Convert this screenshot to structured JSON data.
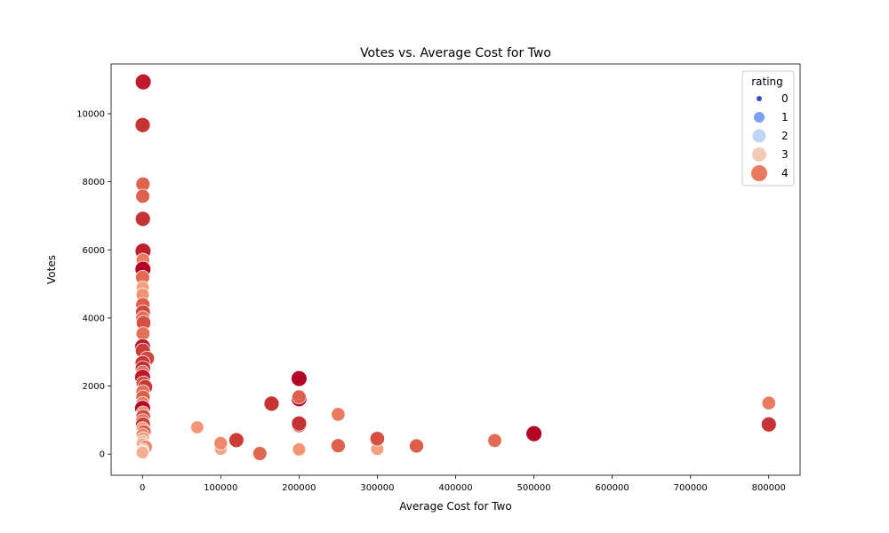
{
  "chart_data": {
    "type": "scatter",
    "title": "Votes vs. Average Cost for Two",
    "xlabel": "Average Cost for Two",
    "ylabel": "Votes",
    "xlim": [
      -40000,
      840000
    ],
    "ylim": [
      -620,
      11460
    ],
    "xticks": [
      0,
      100000,
      200000,
      300000,
      400000,
      500000,
      600000,
      700000,
      800000
    ],
    "yticks": [
      0,
      2000,
      4000,
      6000,
      8000,
      10000
    ],
    "grid": false,
    "legend": {
      "title": "rating",
      "placement": "top-right",
      "entries": [
        {
          "label": "0",
          "color": "#3b4cc0",
          "size": 3
        },
        {
          "label": "1",
          "color": "#7b9ff9",
          "size": 6
        },
        {
          "label": "2",
          "color": "#c0d4f5",
          "size": 7.5
        },
        {
          "label": "3",
          "color": "#f2cbb7",
          "size": 8
        },
        {
          "label": "4",
          "color": "#e97a5f",
          "size": 9
        }
      ]
    },
    "series": [
      {
        "points": [
          {
            "x": 1000,
            "y": 10934,
            "rating": 4.9,
            "color": "#c1192d"
          },
          {
            "x": 300,
            "y": 9667,
            "rating": 4.6,
            "color": "#c53334"
          },
          {
            "x": 600,
            "y": 7931,
            "rating": 4.2,
            "color": "#df634e"
          },
          {
            "x": 400,
            "y": 7574,
            "rating": 4.1,
            "color": "#de614d"
          },
          {
            "x": 500,
            "y": 6910,
            "rating": 4.6,
            "color": "#c53334"
          },
          {
            "x": 800,
            "y": 5966,
            "rating": 4.9,
            "color": "#bd1f2d"
          },
          {
            "x": 700,
            "y": 5702,
            "rating": 3.9,
            "color": "#ea7b60"
          },
          {
            "x": 600,
            "y": 5434,
            "rating": 4.9,
            "color": "#b40426"
          },
          {
            "x": 200,
            "y": 5190,
            "rating": 4.1,
            "color": "#e36b54"
          },
          {
            "x": 400,
            "y": 4898,
            "rating": 3.6,
            "color": "#f5a081"
          },
          {
            "x": 300,
            "y": 4681,
            "rating": 3.7,
            "color": "#f29274"
          },
          {
            "x": 500,
            "y": 4390,
            "rating": 4.2,
            "color": "#dc5d4a"
          },
          {
            "x": 600,
            "y": 4168,
            "rating": 4.4,
            "color": "#d0473d"
          },
          {
            "x": 400,
            "y": 4006,
            "rating": 4.0,
            "color": "#e46e56"
          },
          {
            "x": 1500,
            "y": 3856,
            "rating": 4.3,
            "color": "#d55042"
          },
          {
            "x": 800,
            "y": 3541,
            "rating": 4.0,
            "color": "#e57058"
          },
          {
            "x": 200,
            "y": 3155,
            "rating": 4.9,
            "color": "#bb1b2c"
          },
          {
            "x": 500,
            "y": 3040,
            "rating": 4.5,
            "color": "#cb3e38"
          },
          {
            "x": 6000,
            "y": 2812,
            "rating": 4.4,
            "color": "#d0473d"
          },
          {
            "x": 300,
            "y": 2675,
            "rating": 4.6,
            "color": "#c53334"
          },
          {
            "x": 700,
            "y": 2518,
            "rating": 4.7,
            "color": "#c32e31"
          },
          {
            "x": 400,
            "y": 2402,
            "rating": 4.1,
            "color": "#e36c55"
          },
          {
            "x": 200,
            "y": 2257,
            "rating": 4.9,
            "color": "#bb1b2c"
          },
          {
            "x": 1200,
            "y": 2084,
            "rating": 4.3,
            "color": "#d24b40"
          },
          {
            "x": 3500,
            "y": 1970,
            "rating": 4.5,
            "color": "#c83836"
          },
          {
            "x": 500,
            "y": 1835,
            "rating": 4.0,
            "color": "#e57058"
          },
          {
            "x": 800,
            "y": 1668,
            "rating": 4.2,
            "color": "#dc5d4a"
          },
          {
            "x": 300,
            "y": 1493,
            "rating": 3.9,
            "color": "#ea7b60"
          },
          {
            "x": 200,
            "y": 1347,
            "rating": 4.9,
            "color": "#b40426"
          },
          {
            "x": 600,
            "y": 1217,
            "rating": 3.8,
            "color": "#ef886b"
          },
          {
            "x": 1000,
            "y": 1100,
            "rating": 4.3,
            "color": "#d24b40"
          },
          {
            "x": 400,
            "y": 982,
            "rating": 4.1,
            "color": "#e36c55"
          },
          {
            "x": 700,
            "y": 872,
            "rating": 4.5,
            "color": "#cc403a"
          },
          {
            "x": 300,
            "y": 760,
            "rating": 3.7,
            "color": "#f39577"
          },
          {
            "x": 2000,
            "y": 650,
            "rating": 4.2,
            "color": "#da5a49"
          },
          {
            "x": 500,
            "y": 561,
            "rating": 3.9,
            "color": "#ec7f63"
          },
          {
            "x": 800,
            "y": 468,
            "rating": 3.6,
            "color": "#f59d7e"
          },
          {
            "x": 200,
            "y": 372,
            "rating": 3.3,
            "color": "#f7b396"
          },
          {
            "x": 400,
            "y": 288,
            "rating": 3.5,
            "color": "#f6a385"
          },
          {
            "x": 4000,
            "y": 215,
            "rating": 3.8,
            "color": "#ef886b"
          },
          {
            "x": 600,
            "y": 142,
            "rating": 3.2,
            "color": "#f7b89c"
          },
          {
            "x": 300,
            "y": 88,
            "rating": 3.0,
            "color": "#f5c0a7"
          },
          {
            "x": 100,
            "y": 49,
            "rating": 3.4,
            "color": "#f7ad90"
          },
          {
            "x": 150000,
            "y": 20,
            "rating": 4.1,
            "color": "#e16751"
          },
          {
            "x": 200000,
            "y": 140,
            "rating": 3.7,
            "color": "#f39475"
          },
          {
            "x": 100000,
            "y": 155,
            "rating": 3.5,
            "color": "#f6a586"
          },
          {
            "x": 300000,
            "y": 150,
            "rating": 3.6,
            "color": "#f5a081"
          },
          {
            "x": 100000,
            "y": 319,
            "rating": 3.8,
            "color": "#ef896c"
          },
          {
            "x": 120000,
            "y": 413,
            "rating": 4.5,
            "color": "#cb3e38"
          },
          {
            "x": 250000,
            "y": 250,
            "rating": 4.2,
            "color": "#de614d"
          },
          {
            "x": 350000,
            "y": 240,
            "rating": 4.2,
            "color": "#dc5d4a"
          },
          {
            "x": 300000,
            "y": 455,
            "rating": 4.3,
            "color": "#d55042"
          },
          {
            "x": 450000,
            "y": 400,
            "rating": 4.0,
            "color": "#e36c55"
          },
          {
            "x": 70000,
            "y": 790,
            "rating": 3.6,
            "color": "#f39577"
          },
          {
            "x": 200000,
            "y": 850,
            "rating": 4.4,
            "color": "#d0473d"
          },
          {
            "x": 200000,
            "y": 900,
            "rating": 4.6,
            "color": "#c53334"
          },
          {
            "x": 250000,
            "y": 1170,
            "rating": 3.9,
            "color": "#ea7b60"
          },
          {
            "x": 165000,
            "y": 1484,
            "rating": 4.6,
            "color": "#c53334"
          },
          {
            "x": 200000,
            "y": 1630,
            "rating": 4.9,
            "color": "#b40426"
          },
          {
            "x": 200000,
            "y": 1680,
            "rating": 4.1,
            "color": "#de614d"
          },
          {
            "x": 200000,
            "y": 2220,
            "rating": 4.9,
            "color": "#b40426"
          },
          {
            "x": 500000,
            "y": 602,
            "rating": 4.9,
            "color": "#b40426"
          },
          {
            "x": 800000,
            "y": 872,
            "rating": 4.6,
            "color": "#c53334"
          },
          {
            "x": 800000,
            "y": 1500,
            "rating": 3.9,
            "color": "#ea7b60"
          }
        ]
      }
    ]
  }
}
